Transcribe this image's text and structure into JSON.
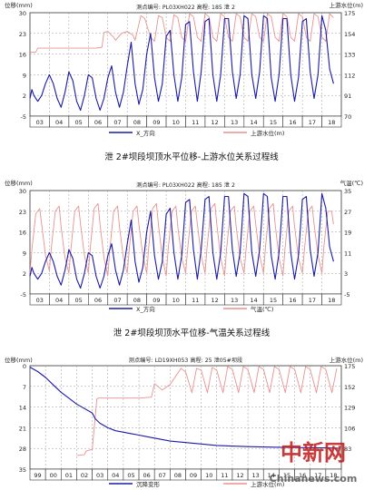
{
  "chart_data": [
    {
      "type": "line",
      "title": "泄 2#坝段坝顶水平位移-上游水位关系过程线",
      "header": "测点编号: PL03XH022  高程: 185  泄 2",
      "ylabel_left": "位移(mm)",
      "ylabel_right": "上游水位(m)",
      "x_ticks": [
        "03",
        "04",
        "05",
        "06",
        "07",
        "08",
        "09",
        "10",
        "11",
        "12",
        "13",
        "14",
        "15",
        "16",
        "17",
        "18"
      ],
      "y_left_ticks": [
        30,
        23,
        16,
        9,
        2,
        -5
      ],
      "y_right_ticks": [
        175,
        154,
        133,
        112,
        91,
        70
      ],
      "ylim_left": [
        -5,
        30
      ],
      "ylim_right": [
        70,
        175
      ],
      "legend": [
        "X_方向",
        "上游水位(m)"
      ],
      "colors": {
        "series1": "#1a1aa8",
        "series2": "#e8928f"
      },
      "series": [
        {
          "name": "X_方向",
          "axis": "left",
          "x": [
            2003.0,
            2003.1,
            2003.2,
            2003.4,
            2003.6,
            2003.8,
            2004.0,
            2004.2,
            2004.4,
            2004.6,
            2004.8,
            2005.0,
            2005.2,
            2005.4,
            2005.6,
            2005.8,
            2006.0,
            2006.2,
            2006.4,
            2006.6,
            2006.8,
            2007.0,
            2007.2,
            2007.4,
            2007.6,
            2007.8,
            2008.0,
            2008.2,
            2008.4,
            2008.6,
            2008.8,
            2009.0,
            2009.2,
            2009.4,
            2009.6,
            2009.8,
            2010.0,
            2010.2,
            2010.4,
            2010.6,
            2010.8,
            2011.0,
            2011.2,
            2011.4,
            2011.6,
            2011.8,
            2012.0,
            2012.2,
            2012.4,
            2012.6,
            2012.8,
            2013.0,
            2013.2,
            2013.4,
            2013.6,
            2013.8,
            2014.0,
            2014.2,
            2014.4,
            2014.6,
            2014.8,
            2015.0,
            2015.2,
            2015.4,
            2015.6,
            2015.8,
            2016.0,
            2016.2,
            2016.4,
            2016.6,
            2016.8,
            2017.0,
            2017.2,
            2017.4,
            2017.6,
            2017.8,
            2018.0,
            2018.2,
            2018.4,
            2018.6
          ],
          "values": [
            1,
            4,
            2,
            0,
            2,
            6,
            9,
            6,
            1,
            -2,
            3,
            10,
            7,
            0,
            -3,
            2,
            9,
            8,
            1,
            -3,
            1,
            8,
            12,
            3,
            -2,
            3,
            12,
            20,
            6,
            -1,
            4,
            16,
            23,
            8,
            0,
            6,
            22,
            24,
            9,
            0,
            8,
            26,
            27,
            10,
            0,
            10,
            27,
            28,
            9,
            0,
            9,
            28,
            28,
            10,
            1,
            9,
            29,
            28,
            9,
            1,
            10,
            29,
            28,
            8,
            0,
            9,
            28,
            28,
            9,
            0,
            8,
            27,
            28,
            10,
            1,
            9,
            29,
            24,
            11,
            6
          ]
        },
        {
          "name": "上游水位(m)",
          "axis": "right",
          "x": [
            2003.0,
            2003.3,
            2003.4,
            2003.7,
            2004.0,
            2004.3,
            2004.4,
            2004.7,
            2005.0,
            2005.3,
            2005.4,
            2005.7,
            2006.0,
            2006.3,
            2006.4,
            2006.7,
            2006.8,
            2007.0,
            2007.3,
            2007.4,
            2007.7,
            2008.0,
            2008.3,
            2008.4,
            2008.7,
            2008.9,
            2009.2,
            2009.4,
            2009.6,
            2009.8,
            2010.0,
            2010.2,
            2010.4,
            2010.6,
            2010.8,
            2011.0,
            2011.2,
            2011.4,
            2011.6,
            2011.8,
            2012.0,
            2012.2,
            2012.4,
            2012.6,
            2012.8,
            2013.0,
            2013.2,
            2013.4,
            2013.6,
            2013.8,
            2014.0,
            2014.2,
            2014.4,
            2014.6,
            2014.8,
            2015.0,
            2015.2,
            2015.4,
            2015.6,
            2015.8,
            2016.0,
            2016.2,
            2016.4,
            2016.6,
            2016.8,
            2017.0,
            2017.2,
            2017.4,
            2017.6,
            2017.8,
            2018.0,
            2018.2,
            2018.4,
            2018.6
          ],
          "values": [
            135,
            135,
            139,
            139,
            139,
            139,
            139,
            139,
            139,
            139,
            139,
            139,
            139,
            139,
            139,
            140,
            155,
            156,
            150,
            147,
            154,
            156,
            152,
            147,
            172,
            169,
            150,
            146,
            172,
            170,
            150,
            146,
            173,
            170,
            150,
            146,
            174,
            171,
            150,
            146,
            174,
            171,
            150,
            146,
            174,
            171,
            150,
            146,
            174,
            171,
            150,
            146,
            174,
            171,
            150,
            146,
            174,
            171,
            150,
            146,
            174,
            171,
            150,
            146,
            174,
            171,
            150,
            146,
            174,
            171,
            150,
            146,
            174,
            170
          ]
        }
      ]
    },
    {
      "type": "line",
      "title": "泄 2#坝段坝顶水平位移-气温关系过程线",
      "header": "测点编号: PL03XH022  高程: 185  泄 2",
      "ylabel_left": "位移(mm)",
      "ylabel_right": "气温(℃)",
      "x_ticks": [
        "03",
        "04",
        "05",
        "06",
        "07",
        "08",
        "09",
        "10",
        "11",
        "12",
        "13",
        "14",
        "15",
        "16",
        "17",
        "18"
      ],
      "y_left_ticks": [
        30,
        23,
        16,
        9,
        2,
        -5
      ],
      "y_right_ticks": [
        35,
        27,
        19,
        11,
        3,
        -5
      ],
      "ylim_left": [
        -5,
        30
      ],
      "ylim_right": [
        -5,
        35
      ],
      "legend": [
        "X_方向",
        "气温(℃)"
      ],
      "colors": {
        "series1": "#1a1aa8",
        "series2": "#e8928f"
      },
      "series": [
        {
          "name": "X_方向",
          "axis": "left",
          "x": [
            2003.0,
            2003.1,
            2003.2,
            2003.4,
            2003.6,
            2003.8,
            2004.0,
            2004.2,
            2004.4,
            2004.6,
            2004.8,
            2005.0,
            2005.2,
            2005.4,
            2005.6,
            2005.8,
            2006.0,
            2006.2,
            2006.4,
            2006.6,
            2006.8,
            2007.0,
            2007.2,
            2007.4,
            2007.6,
            2007.8,
            2008.0,
            2008.2,
            2008.4,
            2008.6,
            2008.8,
            2009.0,
            2009.2,
            2009.4,
            2009.6,
            2009.8,
            2010.0,
            2010.2,
            2010.4,
            2010.6,
            2010.8,
            2011.0,
            2011.2,
            2011.4,
            2011.6,
            2011.8,
            2012.0,
            2012.2,
            2012.4,
            2012.6,
            2012.8,
            2013.0,
            2013.2,
            2013.4,
            2013.6,
            2013.8,
            2014.0,
            2014.2,
            2014.4,
            2014.6,
            2014.8,
            2015.0,
            2015.2,
            2015.4,
            2015.6,
            2015.8,
            2016.0,
            2016.2,
            2016.4,
            2016.6,
            2016.8,
            2017.0,
            2017.2,
            2017.4,
            2017.6,
            2017.8,
            2018.0,
            2018.2,
            2018.4,
            2018.6
          ],
          "values": [
            1,
            4,
            2,
            0,
            2,
            6,
            9,
            6,
            1,
            -2,
            3,
            10,
            7,
            0,
            -3,
            2,
            9,
            8,
            1,
            -3,
            1,
            8,
            12,
            3,
            -2,
            3,
            12,
            20,
            6,
            -1,
            4,
            16,
            23,
            8,
            0,
            6,
            22,
            24,
            9,
            0,
            8,
            26,
            27,
            10,
            0,
            10,
            27,
            28,
            9,
            0,
            9,
            28,
            28,
            10,
            1,
            9,
            29,
            28,
            9,
            1,
            10,
            29,
            28,
            8,
            0,
            9,
            28,
            28,
            9,
            0,
            8,
            27,
            28,
            10,
            1,
            9,
            29,
            24,
            11,
            6
          ]
        },
        {
          "name": "气温(℃)",
          "axis": "right",
          "x": [
            2003.0,
            2003.1,
            2003.3,
            2003.5,
            2003.6,
            2003.8,
            2004.0,
            2004.1,
            2004.3,
            2004.5,
            2004.6,
            2004.8,
            2005.0,
            2005.1,
            2005.3,
            2005.5,
            2005.6,
            2005.8,
            2006.0,
            2006.1,
            2006.3,
            2006.5,
            2006.6,
            2006.8,
            2007.0,
            2007.1,
            2007.3,
            2007.5,
            2007.6,
            2007.8,
            2008.0,
            2008.1,
            2008.3,
            2008.5,
            2008.6,
            2008.8,
            2009.0,
            2009.1,
            2009.3,
            2009.5,
            2009.6,
            2009.8,
            2010.0,
            2010.1,
            2010.3,
            2010.5,
            2010.6,
            2010.8,
            2011.0,
            2011.1,
            2011.3,
            2011.5,
            2011.6,
            2011.8,
            2012.0,
            2012.1,
            2012.3,
            2012.5,
            2012.6,
            2012.8,
            2013.0,
            2013.1,
            2013.3,
            2013.5,
            2013.6,
            2013.8,
            2014.0,
            2014.1,
            2014.3,
            2014.5,
            2014.6,
            2014.8,
            2015.0,
            2015.1,
            2015.3,
            2015.5,
            2015.6,
            2015.8,
            2016.0,
            2016.1,
            2016.3,
            2016.5,
            2016.6,
            2016.8,
            2017.0,
            2017.1,
            2017.3,
            2017.5,
            2017.6,
            2017.8,
            2018.0,
            2018.1,
            2018.3,
            2018.5,
            2018.6
          ],
          "values": [
            3,
            12,
            26,
            28,
            22,
            10,
            4,
            13,
            27,
            29,
            21,
            9,
            3,
            12,
            27,
            29,
            22,
            10,
            3,
            13,
            28,
            30,
            22,
            9,
            2,
            12,
            27,
            29,
            21,
            9,
            3,
            12,
            27,
            29,
            22,
            10,
            3,
            13,
            28,
            30,
            22,
            9,
            2,
            12,
            27,
            29,
            21,
            9,
            3,
            12,
            27,
            29,
            22,
            10,
            3,
            13,
            28,
            30,
            22,
            9,
            2,
            12,
            27,
            29,
            21,
            9,
            3,
            12,
            27,
            29,
            22,
            10,
            3,
            13,
            28,
            30,
            22,
            9,
            2,
            12,
            27,
            29,
            21,
            9,
            3,
            12,
            27,
            29,
            22,
            10,
            3,
            13,
            27,
            27,
            22
          ]
        }
      ]
    },
    {
      "type": "line",
      "title": "",
      "header": "测点编号: LD19XH053  高程: 25  泄05#坝段",
      "ylabel_left": "位移(mm)",
      "ylabel_right": "上游水位(m)",
      "x_ticks": [
        "99",
        "00",
        "01",
        "02",
        "03",
        "04",
        "05",
        "06",
        "07",
        "08",
        "09",
        "10",
        "11",
        "12",
        "13",
        "14",
        "15",
        "16",
        "17",
        "18"
      ],
      "y_left_ticks": [
        0,
        7,
        14,
        21,
        28,
        35
      ],
      "y_right_ticks": [
        175,
        152,
        129,
        106,
        83
      ],
      "ylim_left": [
        35,
        0
      ],
      "ylim_right": [
        60,
        175
      ],
      "legend": [
        "沉降变形",
        "上游水位(m)"
      ],
      "colors": {
        "series1": "#1a1aa8",
        "series2": "#e8928f"
      },
      "series": [
        {
          "name": "沉降变形",
          "axis": "left",
          "x": [
            1999.0,
            1999.5,
            2000.0,
            2000.5,
            2001.0,
            2001.5,
            2002.0,
            2002.5,
            2003.0,
            2003.2,
            2003.5,
            2004.0,
            2004.5,
            2005.0,
            2005.5,
            2006.0,
            2006.5,
            2007.0,
            2007.5,
            2008.0,
            2009.0,
            2010.0,
            2011.0,
            2012.0,
            2013.0,
            2014.0,
            2015.0,
            2016.0,
            2017.0,
            2018.0,
            2018.8
          ],
          "values": [
            0.5,
            2,
            4,
            6.5,
            9,
            11,
            13,
            14.5,
            16,
            18,
            19.5,
            21,
            22,
            22.5,
            23,
            23.5,
            24,
            24.5,
            25,
            25.5,
            26,
            26.5,
            27,
            27.2,
            27.4,
            27.5,
            27.6,
            27.7,
            27.8,
            27.8,
            27.9
          ]
        },
        {
          "name": "上游水位(m)",
          "axis": "right",
          "x": [
            2002.0,
            2002.5,
            2002.6,
            2003.0,
            2003.3,
            2003.4,
            2004.0,
            2005.0,
            2006.0,
            2006.8,
            2007.0,
            2007.5,
            2008.0,
            2008.7,
            2009.0,
            2009.4,
            2009.7,
            2010.0,
            2010.4,
            2010.7,
            2011.0,
            2011.4,
            2011.7,
            2012.0,
            2012.4,
            2012.7,
            2013.0,
            2013.4,
            2013.7,
            2014.0,
            2014.4,
            2014.7,
            2015.0,
            2015.4,
            2015.7,
            2016.0,
            2016.4,
            2016.7,
            2017.0,
            2017.4,
            2017.7,
            2018.0,
            2018.4,
            2018.7
          ],
          "values": [
            75,
            76,
            80,
            82,
            138,
            139,
            139,
            139,
            139,
            140,
            155,
            148,
            154,
            172,
            168,
            145,
            172,
            170,
            145,
            173,
            170,
            145,
            174,
            171,
            145,
            174,
            171,
            145,
            174,
            171,
            145,
            174,
            171,
            145,
            174,
            171,
            145,
            174,
            171,
            145,
            174,
            171,
            145,
            172
          ]
        }
      ]
    }
  ],
  "captions": {
    "chart1": "泄 2#坝段坝顶水平位移-上游水位关系过程线",
    "chart2": "泄 2#坝段坝顶水平位移-气温关系过程线"
  },
  "watermark": {
    "brand": "中新网",
    "url": "Chinanews.com"
  }
}
